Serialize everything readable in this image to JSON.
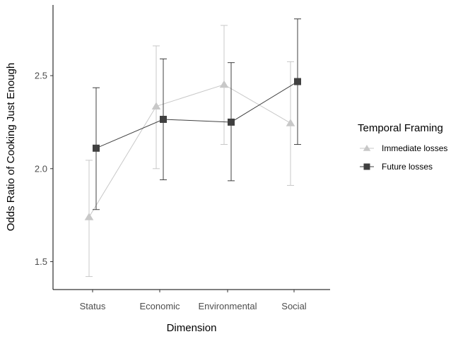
{
  "chart_data": {
    "type": "line",
    "xlabel": "Dimension",
    "ylabel": "Odds Ratio of Cooking Just Enough",
    "categories": [
      "Status",
      "Economic",
      "Environmental",
      "Social"
    ],
    "y_ticks": [
      1.5,
      2.0,
      2.5
    ],
    "y_tick_labels": [
      "1.5",
      "2.0",
      "2.5"
    ],
    "ylim": [
      1.35,
      2.88
    ],
    "grid": false,
    "legend": {
      "title": "Temporal Framing",
      "placement": "right"
    },
    "series": [
      {
        "name": "Immediate losses",
        "color": "#c8c8c8",
        "marker": "triangle",
        "values": [
          1.74,
          2.335,
          2.452,
          2.245
        ],
        "lower": [
          1.42,
          2.0,
          2.13,
          1.91
        ],
        "upper": [
          2.045,
          2.66,
          2.77,
          2.575
        ]
      },
      {
        "name": "Future losses",
        "color": "#404040",
        "marker": "square",
        "values": [
          2.11,
          2.265,
          2.25,
          2.468
        ],
        "lower": [
          1.78,
          1.94,
          1.935,
          2.13
        ],
        "upper": [
          2.435,
          2.59,
          2.57,
          2.805
        ]
      }
    ]
  }
}
